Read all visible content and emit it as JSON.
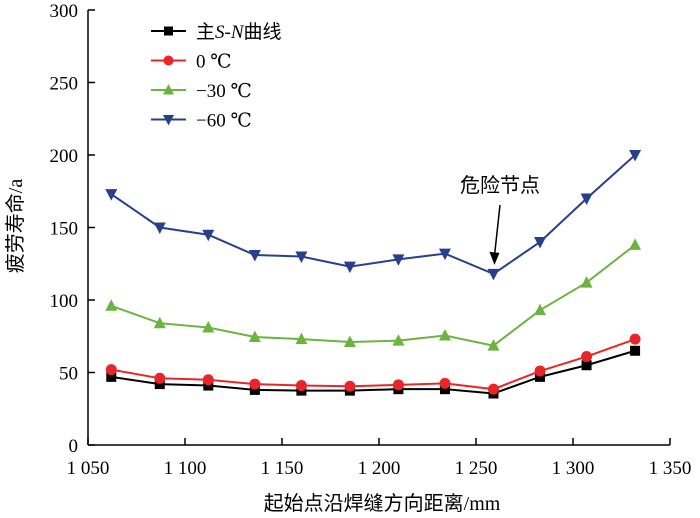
{
  "chart_data": {
    "type": "line",
    "title": "",
    "xlabel": "起始点沿焊缝方向距离/mm",
    "ylabel": "疲劳寿命/a",
    "xlim": [
      1050,
      1350
    ],
    "ylim": [
      0,
      300
    ],
    "xticks": [
      1050,
      1100,
      1150,
      1200,
      1250,
      1300,
      1350
    ],
    "xtick_labels": [
      "1 050",
      "1 100",
      "1 150",
      "1 200",
      "1 250",
      "1 300",
      "1 350"
    ],
    "yticks": [
      0,
      50,
      100,
      150,
      200,
      250,
      300
    ],
    "ytick_labels": [
      "0",
      "50",
      "100",
      "150",
      "200",
      "250",
      "300"
    ],
    "x": [
      1062,
      1087,
      1112,
      1136,
      1160,
      1185,
      1210,
      1234,
      1259,
      1283,
      1307,
      1332
    ],
    "legend_position": "top-left",
    "series": [
      {
        "name": "主S-N曲线",
        "name_parts": [
          "主",
          "S",
          "-",
          "N",
          "曲线"
        ],
        "color": "#000000",
        "marker": "square",
        "values": [
          47,
          42,
          41,
          38,
          37.5,
          37.5,
          38.5,
          38.5,
          35.5,
          47,
          55,
          65
        ]
      },
      {
        "name": "0 ℃",
        "color": "#e8262a",
        "marker": "circle",
        "values": [
          52,
          46,
          45,
          42,
          41,
          40.5,
          41.5,
          42.5,
          38.5,
          51,
          61,
          73
        ]
      },
      {
        "name": "−30 ℃",
        "color": "#6cb33f",
        "marker": "triangle-up",
        "values": [
          96,
          84,
          81,
          74.5,
          73,
          71,
          72,
          75.5,
          68.5,
          93,
          112,
          138
        ]
      },
      {
        "name": "−60 ℃",
        "color": "#27408b",
        "marker": "triangle-down",
        "values": [
          173,
          150,
          145,
          131,
          130,
          123,
          128,
          132,
          118,
          140,
          170,
          200
        ]
      }
    ],
    "annotations": [
      {
        "text": "危险节点",
        "arrow_to": {
          "x": 1259,
          "y": 118
        }
      }
    ]
  }
}
